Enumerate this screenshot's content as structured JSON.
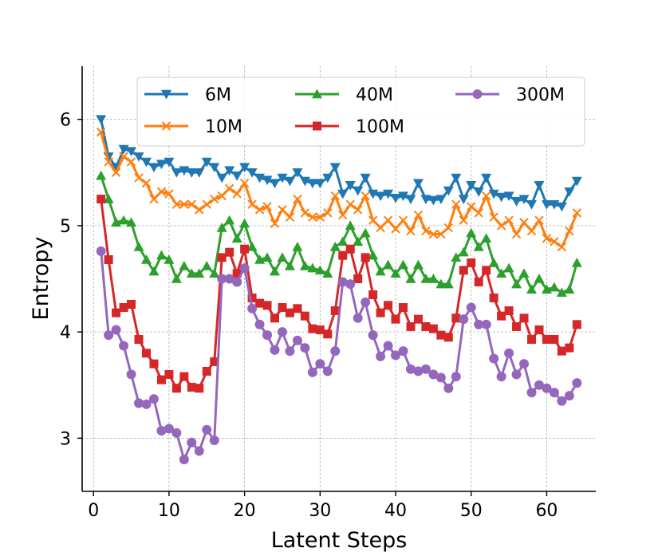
{
  "chart_data": {
    "type": "line",
    "title": "",
    "xlabel": "Latent Steps",
    "ylabel": "Entropy",
    "xlim": [
      -1.5,
      66.5
    ],
    "ylim": [
      2.5,
      6.5
    ],
    "xticks": [
      0,
      10,
      20,
      30,
      40,
      50,
      60
    ],
    "yticks": [
      3,
      4,
      5,
      6
    ],
    "grid": true,
    "legend_position": "top-right",
    "legend_columns": 3,
    "x": [
      1,
      2,
      3,
      4,
      5,
      6,
      7,
      8,
      9,
      10,
      11,
      12,
      13,
      14,
      15,
      16,
      17,
      18,
      19,
      20,
      21,
      22,
      23,
      24,
      25,
      26,
      27,
      28,
      29,
      30,
      31,
      32,
      33,
      34,
      35,
      36,
      37,
      38,
      39,
      40,
      41,
      42,
      43,
      44,
      45,
      46,
      47,
      48,
      49,
      50,
      51,
      52,
      53,
      54,
      55,
      56,
      57,
      58,
      59,
      60,
      61,
      62,
      63,
      64
    ],
    "series": [
      {
        "name": "6M",
        "color": "#1f77b4",
        "marker": "triangle-down",
        "values": [
          6.0,
          5.65,
          5.55,
          5.72,
          5.7,
          5.65,
          5.6,
          5.55,
          5.58,
          5.6,
          5.5,
          5.52,
          5.5,
          5.5,
          5.6,
          5.55,
          5.45,
          5.52,
          5.47,
          5.55,
          5.5,
          5.45,
          5.43,
          5.4,
          5.45,
          5.42,
          5.5,
          5.42,
          5.4,
          5.4,
          5.45,
          5.55,
          5.3,
          5.38,
          5.33,
          5.45,
          5.3,
          5.28,
          5.3,
          5.26,
          5.28,
          5.25,
          5.4,
          5.25,
          5.24,
          5.25,
          5.33,
          5.45,
          5.25,
          5.38,
          5.32,
          5.45,
          5.3,
          5.27,
          5.28,
          5.23,
          5.25,
          5.2,
          5.38,
          5.2,
          5.2,
          5.18,
          5.32,
          5.42
        ]
      },
      {
        "name": "10M",
        "color": "#ff7f0e",
        "marker": "x",
        "values": [
          5.88,
          5.6,
          5.5,
          5.65,
          5.6,
          5.45,
          5.4,
          5.25,
          5.32,
          5.3,
          5.2,
          5.2,
          5.2,
          5.15,
          5.2,
          5.25,
          5.28,
          5.35,
          5.3,
          5.4,
          5.2,
          5.15,
          5.18,
          5.02,
          5.15,
          5.08,
          5.25,
          5.12,
          5.08,
          5.08,
          5.12,
          5.28,
          5.1,
          5.2,
          5.15,
          5.28,
          5.05,
          4.98,
          5.05,
          4.97,
          5.05,
          4.95,
          5.1,
          4.95,
          4.92,
          4.92,
          4.98,
          5.2,
          5.05,
          5.18,
          5.12,
          5.28,
          5.08,
          5.0,
          5.05,
          4.92,
          5.03,
          4.95,
          5.05,
          4.88,
          4.85,
          4.8,
          4.95,
          5.12
        ]
      },
      {
        "name": "40M",
        "color": "#2ca02c",
        "marker": "triangle-up",
        "values": [
          5.47,
          5.25,
          5.03,
          5.05,
          5.03,
          4.8,
          4.68,
          4.57,
          4.72,
          4.68,
          4.5,
          4.62,
          4.55,
          4.55,
          4.62,
          4.55,
          4.98,
          5.05,
          4.88,
          5.02,
          4.8,
          4.68,
          4.7,
          4.57,
          4.7,
          4.62,
          4.8,
          4.62,
          4.6,
          4.58,
          4.55,
          4.8,
          4.85,
          5.0,
          4.85,
          4.93,
          4.72,
          4.57,
          4.63,
          4.55,
          4.63,
          4.5,
          4.63,
          4.5,
          4.5,
          4.45,
          4.45,
          4.7,
          4.75,
          4.93,
          4.8,
          4.88,
          4.65,
          4.55,
          4.6,
          4.45,
          4.55,
          4.4,
          4.5,
          4.4,
          4.42,
          4.37,
          4.4,
          4.65
        ]
      },
      {
        "name": "100M",
        "color": "#d62728",
        "marker": "square",
        "values": [
          5.25,
          4.68,
          4.18,
          4.23,
          4.26,
          3.93,
          3.8,
          3.7,
          3.55,
          3.6,
          3.47,
          3.58,
          3.48,
          3.47,
          3.63,
          3.72,
          4.7,
          4.75,
          4.55,
          4.78,
          4.32,
          4.27,
          4.25,
          4.13,
          4.23,
          4.18,
          4.22,
          4.15,
          4.03,
          4.02,
          3.98,
          4.2,
          4.72,
          4.78,
          4.5,
          4.7,
          4.35,
          4.18,
          4.25,
          4.12,
          4.23,
          4.05,
          4.12,
          4.05,
          4.03,
          3.97,
          3.95,
          4.13,
          4.58,
          4.65,
          4.47,
          4.58,
          4.32,
          4.15,
          4.2,
          4.05,
          4.13,
          3.93,
          4.02,
          3.93,
          3.93,
          3.82,
          3.85,
          4.07
        ]
      },
      {
        "name": "300M",
        "color": "#9467bd",
        "marker": "circle",
        "values": [
          4.76,
          3.97,
          4.02,
          3.87,
          3.6,
          3.33,
          3.32,
          3.37,
          3.07,
          3.09,
          3.05,
          2.8,
          2.96,
          2.88,
          3.08,
          2.98,
          4.5,
          4.5,
          4.47,
          4.6,
          4.22,
          4.07,
          3.97,
          3.83,
          4.0,
          3.82,
          3.92,
          3.85,
          3.62,
          3.7,
          3.63,
          3.82,
          4.47,
          4.45,
          4.13,
          4.28,
          3.97,
          3.77,
          3.87,
          3.78,
          3.82,
          3.65,
          3.63,
          3.65,
          3.6,
          3.57,
          3.47,
          3.58,
          4.12,
          4.23,
          4.07,
          4.07,
          3.75,
          3.58,
          3.8,
          3.6,
          3.7,
          3.43,
          3.5,
          3.47,
          3.43,
          3.35,
          3.4,
          3.52
        ]
      }
    ]
  }
}
